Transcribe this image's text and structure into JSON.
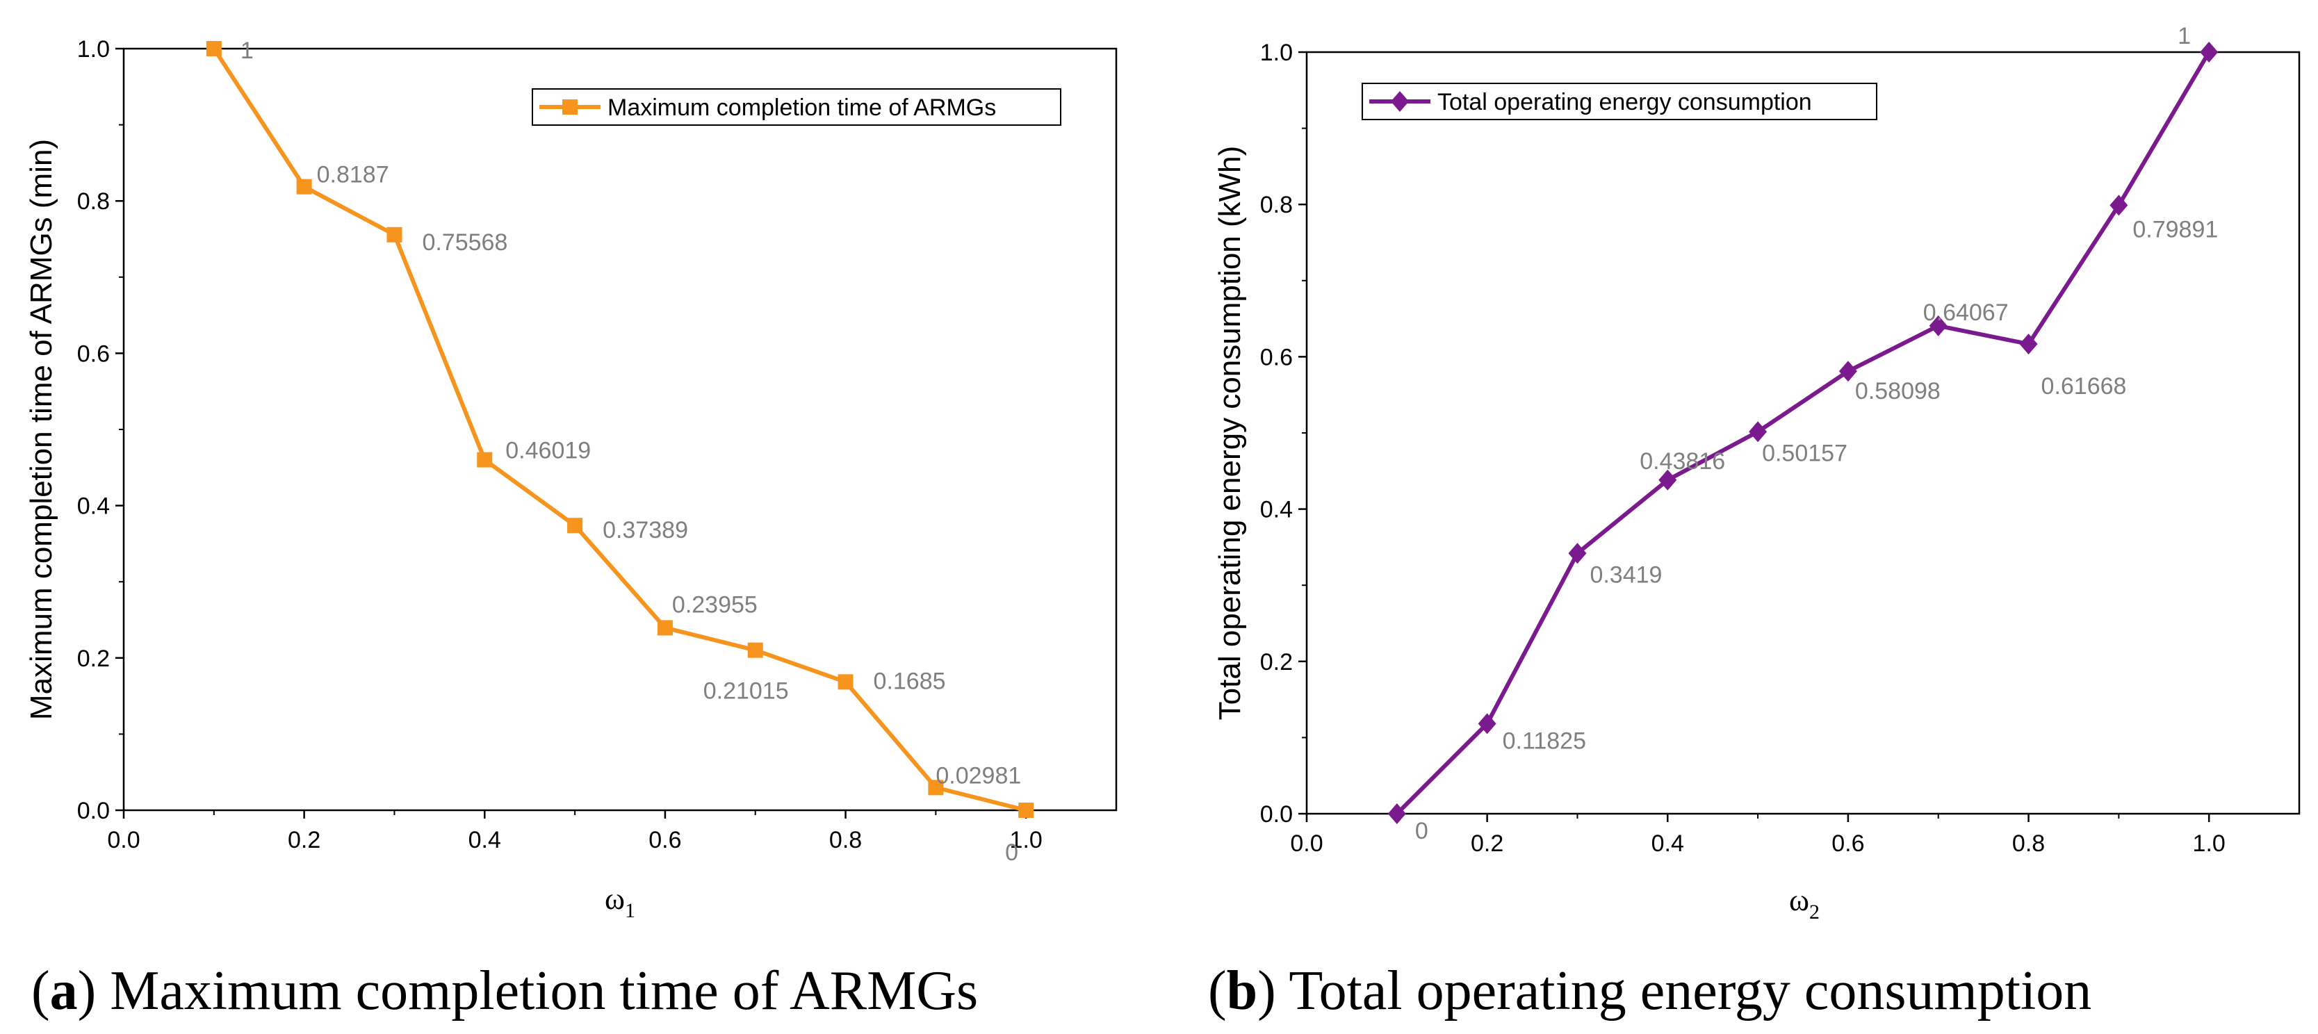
{
  "chart_data": [
    {
      "type": "line",
      "panel": "a",
      "x": [
        0.1,
        0.2,
        0.3,
        0.4,
        0.5,
        0.6,
        0.7,
        0.8,
        0.9,
        1.0
      ],
      "series": [
        {
          "name": "Maximum completion time of ARMGs",
          "values": [
            1,
            0.8187,
            0.75568,
            0.46019,
            0.37389,
            0.23955,
            0.21015,
            0.1685,
            0.02981,
            0
          ],
          "labels": [
            "1",
            "0.8187",
            "0.75568",
            "0.46019",
            "0.37389",
            "0.23955",
            "0.21015",
            "0.1685",
            "0.02981",
            "0"
          ],
          "color": "#f7941d",
          "marker": "square"
        }
      ],
      "xlabel_symbol": "ω",
      "xlabel_subscript": "1",
      "ylabel": "Maximum completion time of ARMGs (min)",
      "xlim": [
        0.0,
        1.1
      ],
      "ylim": [
        0.0,
        1.0
      ],
      "xticks": [
        "0.0",
        "0.2",
        "0.4",
        "0.6",
        "0.8",
        "1.0"
      ],
      "yticks": [
        "0.0",
        "0.2",
        "0.4",
        "0.6",
        "0.8",
        "1.0"
      ],
      "legend_position": "top-right",
      "caption_letter": "a",
      "caption_text": "Maximum completion time of ARMGs"
    },
    {
      "type": "line",
      "panel": "b",
      "x": [
        0.1,
        0.2,
        0.3,
        0.4,
        0.5,
        0.6,
        0.7,
        0.8,
        0.9,
        1.0
      ],
      "series": [
        {
          "name": "Total operating energy consumption",
          "values": [
            0,
            0.11825,
            0.3419,
            0.43816,
            0.50157,
            0.58098,
            0.64067,
            0.61668,
            0.79891,
            1
          ],
          "labels": [
            "0",
            "0.11825",
            "0.3419",
            "0.43816",
            "0.50157",
            "0.58098",
            "0.64067",
            "0.61668",
            "0.79891",
            "1"
          ],
          "color": "#7b1a8e",
          "marker": "diamond"
        }
      ],
      "xlabel_symbol": "ω",
      "xlabel_subscript": "2",
      "ylabel": "Total operating energy consumption (kWh)",
      "xlim": [
        0.0,
        1.1
      ],
      "ylim": [
        0.0,
        1.0
      ],
      "xticks": [
        "0.0",
        "0.2",
        "0.4",
        "0.6",
        "0.8",
        "1.0"
      ],
      "yticks": [
        "0.0",
        "0.2",
        "0.4",
        "0.6",
        "0.8",
        "1.0"
      ],
      "legend_position": "top-left",
      "caption_letter": "b",
      "caption_text": "Total operating energy consumption"
    }
  ]
}
